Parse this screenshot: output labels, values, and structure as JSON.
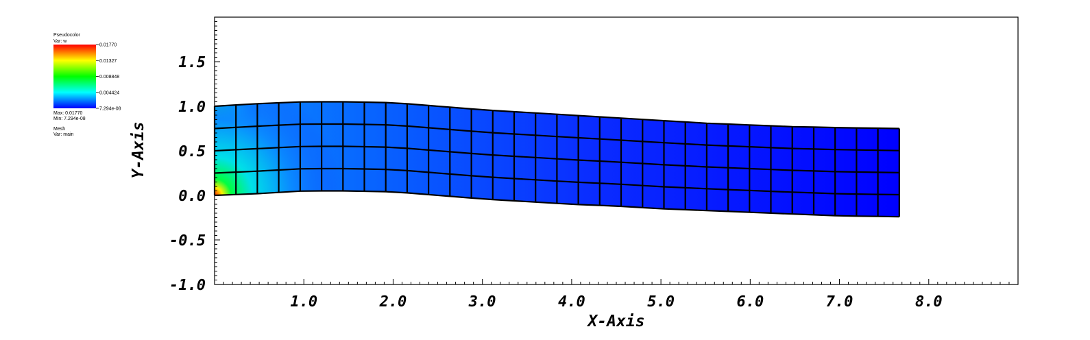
{
  "chart_data": {
    "type": "heatmap",
    "plot_kind": "Pseudocolor plot of variable w on a deformed quadrilateral mesh",
    "xlabel": "X-Axis",
    "ylabel": "Y-Axis",
    "xlim": [
      0,
      9
    ],
    "ylim": [
      -1.0,
      2.0
    ],
    "x_tick_labels": [
      "1.0",
      "2.0",
      "3.0",
      "4.0",
      "5.0",
      "6.0",
      "7.0",
      "8.0"
    ],
    "y_tick_labels": [
      "-1.0",
      "-0.5",
      "0.0",
      "0.5",
      "1.0",
      "1.5"
    ],
    "mesh": {
      "columns": 32,
      "rows": 4,
      "x_range": [
        0.0,
        7.67
      ],
      "bottom_edge": [
        [
          0.0,
          0.0
        ],
        [
          0.5,
          0.02
        ],
        [
          1.0,
          0.05
        ],
        [
          1.5,
          0.05
        ],
        [
          2.0,
          0.04
        ],
        [
          2.5,
          0.0
        ],
        [
          3.0,
          -0.04
        ],
        [
          3.5,
          -0.07
        ],
        [
          4.0,
          -0.1
        ],
        [
          4.5,
          -0.12
        ],
        [
          5.0,
          -0.15
        ],
        [
          5.5,
          -0.17
        ],
        [
          6.0,
          -0.19
        ],
        [
          6.5,
          -0.21
        ],
        [
          7.0,
          -0.23
        ],
        [
          7.67,
          -0.24
        ]
      ],
      "top_edge": [
        [
          0.0,
          1.0
        ],
        [
          0.5,
          1.03
        ],
        [
          1.0,
          1.05
        ],
        [
          1.5,
          1.05
        ],
        [
          2.0,
          1.04
        ],
        [
          2.5,
          1.0
        ],
        [
          3.0,
          0.96
        ],
        [
          3.5,
          0.93
        ],
        [
          4.0,
          0.9
        ],
        [
          4.5,
          0.87
        ],
        [
          5.0,
          0.84
        ],
        [
          5.5,
          0.81
        ],
        [
          6.0,
          0.79
        ],
        [
          6.5,
          0.77
        ],
        [
          7.0,
          0.76
        ],
        [
          7.67,
          0.75
        ]
      ],
      "line_color": "#000000"
    },
    "value_summary": "w is maximal at the lower-left clamped corner (0, 0) and decays to about 0 over the rest of the beam",
    "colormap": [
      "#0000ff",
      "#00ffff",
      "#00ff00",
      "#ffff00",
      "#ff0000"
    ]
  },
  "legend": {
    "plot_type": "Pseudocolor",
    "var_line": "Var: w",
    "ticks": [
      "0.01770",
      "0.01327",
      "0.008848",
      "0.004424",
      "7.294e-08"
    ],
    "max_line": "Max: 0.01770",
    "min_line": "Min: 7.294e-08",
    "mesh_label": "Mesh",
    "mesh_var": "Var: main"
  }
}
